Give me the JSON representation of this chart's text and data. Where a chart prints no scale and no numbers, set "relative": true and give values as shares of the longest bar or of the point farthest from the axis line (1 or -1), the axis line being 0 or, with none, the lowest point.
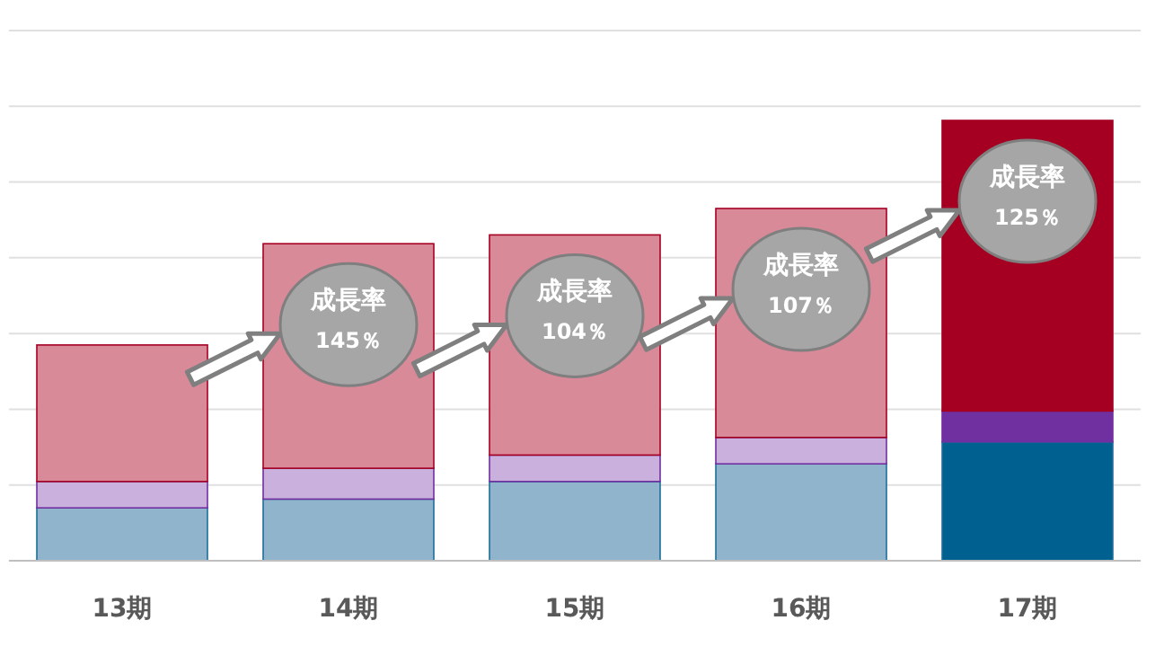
{
  "chart_data": {
    "type": "bar",
    "relative": true,
    "stacked": true,
    "grid": "y",
    "categories": [
      "13期",
      "14期",
      "15期",
      "16期",
      "17期"
    ],
    "series": [
      {
        "color": "#1f6f99",
        "colors": [
          "#8fb4cc",
          "#8fb4cc",
          "#8fb4cc",
          "#8fb4cc",
          "#006090"
        ],
        "values": [
          0.12,
          0.14,
          0.18,
          0.22,
          0.27
        ]
      },
      {
        "color": "#7030a0",
        "colors": [
          "#c9b0dd",
          "#c9b0dd",
          "#c9b0dd",
          "#c9b0dd",
          "#7030a0"
        ],
        "values": [
          0.06,
          0.07,
          0.06,
          0.06,
          0.07
        ]
      },
      {
        "color": "#a50021",
        "colors": [
          "#d98a99",
          "#d98a99",
          "#d98a99",
          "#d98a99",
          "#a50021"
        ],
        "values": [
          0.31,
          0.51,
          0.5,
          0.52,
          0.66
        ]
      }
    ],
    "annotations": [
      "成長率\n145％",
      "成長率\n104％",
      "成長率\n107％",
      "成長率\n125％"
    ]
  }
}
